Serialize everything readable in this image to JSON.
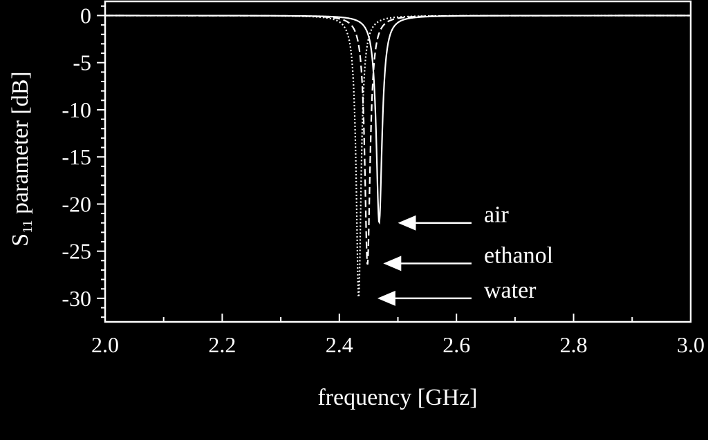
{
  "chart_data": {
    "type": "line",
    "xlabel": "frequency [GHz]",
    "ylabel_main": "S",
    "ylabel_sub": "11",
    "ylabel_rest": " parameter [dB]",
    "xlim": [
      2.0,
      3.0
    ],
    "ylim": [
      -32.5,
      1.5
    ],
    "xticks": [
      2.0,
      2.2,
      2.4,
      2.6,
      2.8,
      3.0
    ],
    "xtick_labels": [
      "2.0",
      "2.2",
      "2.4",
      "2.6",
      "2.8",
      "3.0"
    ],
    "yticks": [
      0,
      -5,
      -10,
      -15,
      -20,
      -25,
      -30
    ],
    "ytick_labels": [
      "0",
      "-5",
      "-10",
      "-15",
      "-20",
      "-25",
      "-30"
    ],
    "grid": false,
    "colors": {
      "background": "#000000",
      "foreground": "#ffffff"
    },
    "series": [
      {
        "name": "air",
        "style": "solid",
        "f0": 2.468,
        "depth": -22.0,
        "width": 0.006
      },
      {
        "name": "ethanol",
        "style": "dashed",
        "f0": 2.448,
        "depth": -26.5,
        "width": 0.0055
      },
      {
        "name": "water",
        "style": "dotted",
        "f0": 2.433,
        "depth": -30.0,
        "width": 0.005
      }
    ],
    "annotations": [
      {
        "text": "air",
        "series": "air",
        "arrow_tip": [
          2.5,
          -22.0
        ]
      },
      {
        "text": "ethanol",
        "series": "ethanol",
        "arrow_tip": [
          2.475,
          -26.3
        ]
      },
      {
        "text": "water",
        "series": "water",
        "arrow_tip": [
          2.465,
          -30.0
        ]
      }
    ]
  }
}
